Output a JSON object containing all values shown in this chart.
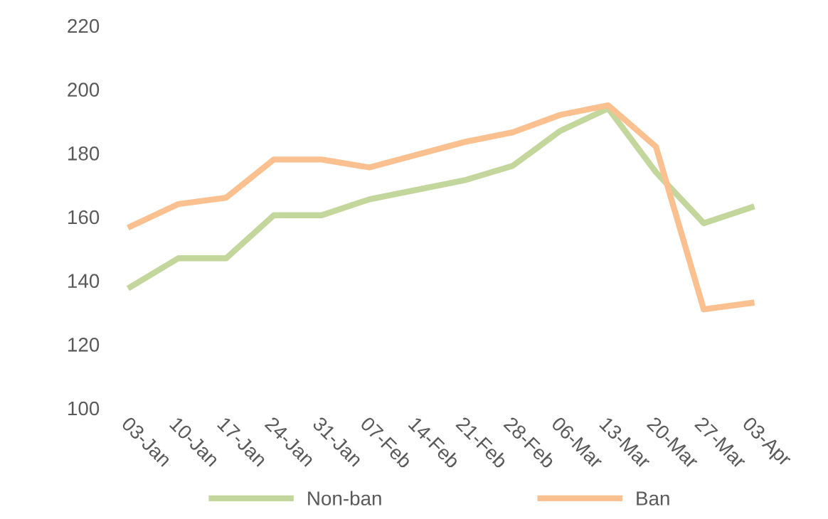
{
  "chart_data": {
    "type": "line",
    "categories": [
      "03-Jan",
      "10-Jan",
      "17-Jan",
      "24-Jan",
      "31-Jan",
      "07-Feb",
      "14-Feb",
      "21-Feb",
      "28-Feb",
      "06-Mar",
      "13-Mar",
      "20-Mar",
      "27-Mar",
      "03-Apr"
    ],
    "series": [
      {
        "name": "Non-ban",
        "color": "#c3d69b",
        "values": [
          138,
          147,
          147,
          160.5,
          160.5,
          165.5,
          168.5,
          171.5,
          176,
          187,
          194,
          174,
          158,
          163
        ]
      },
      {
        "name": "Ban",
        "color": "#fac090",
        "values": [
          157,
          164,
          166,
          178,
          178,
          175.5,
          179.5,
          183.5,
          186.5,
          192,
          195,
          182,
          131,
          133
        ]
      }
    ],
    "ylim": [
      100,
      220
    ],
    "yticks": [
      100,
      120,
      140,
      160,
      180,
      200,
      220
    ],
    "grid": false,
    "legend": "bottom",
    "marker": "none",
    "line_style": "solid"
  }
}
